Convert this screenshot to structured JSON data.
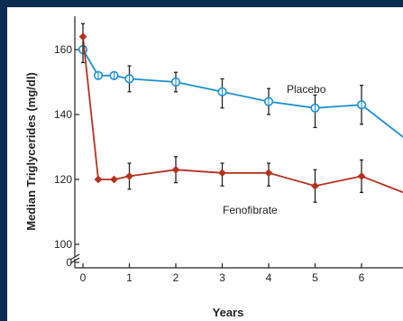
{
  "colors": {
    "frame": "#0b2d52",
    "background": "#ffffff",
    "placebo": "#1b8fd1",
    "fenofibrate": "#b3321f",
    "error_bar": "#222222",
    "axis": "#222222"
  },
  "chart_data": {
    "type": "line",
    "title": "",
    "xlabel": "Years",
    "ylabel": "Median Triglycerides (mg/dl)",
    "x_ticks": [
      "0",
      "1",
      "2",
      "3",
      "4",
      "5",
      "6"
    ],
    "y_ticks": [
      "0",
      "100",
      "120",
      "140",
      "160"
    ],
    "xlim": [
      0,
      6.9
    ],
    "ylim": [
      100,
      165
    ],
    "y_axis_break": true,
    "series": [
      {
        "name": "Placebo",
        "marker": "open-circle",
        "color": "#1b8fd1",
        "x": [
          0,
          0.33,
          0.67,
          1,
          2,
          3,
          4,
          5,
          6,
          6.9
        ],
        "y": [
          160,
          152,
          152,
          151,
          150,
          147,
          144,
          142,
          143,
          133
        ],
        "error_bars": [
          [
            160,
            160
          ],
          null,
          null,
          [
            147,
            155
          ],
          [
            147,
            153
          ],
          [
            142,
            151
          ],
          [
            140,
            148
          ],
          [
            136,
            146
          ],
          [
            137,
            149
          ],
          null
        ]
      },
      {
        "name": "Fenofibrate",
        "marker": "filled-diamond",
        "color": "#b3321f",
        "x": [
          0,
          0.33,
          0.67,
          1,
          2,
          3,
          4,
          5,
          6,
          6.9
        ],
        "y": [
          164,
          120,
          120,
          121,
          123,
          122,
          122,
          118,
          121,
          116
        ],
        "error_bars": [
          [
            156,
            168
          ],
          null,
          null,
          [
            117,
            125
          ],
          [
            119,
            127
          ],
          [
            118,
            125
          ],
          [
            118,
            125
          ],
          [
            113,
            123
          ],
          [
            116,
            126
          ],
          null
        ]
      }
    ],
    "annotations": [
      "Placebo",
      "Fenofibrate"
    ]
  }
}
